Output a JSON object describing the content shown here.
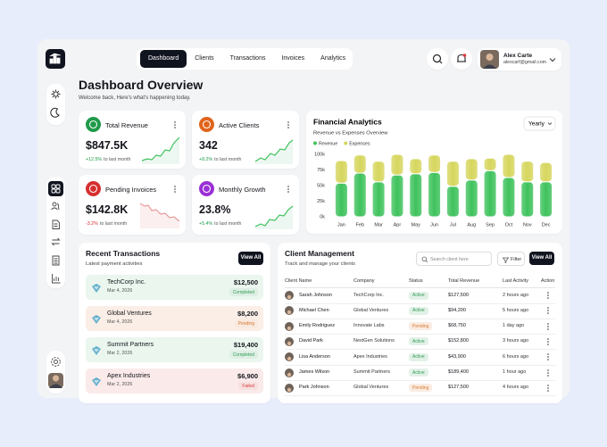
{
  "nav": {
    "tabs": [
      "Dashboard",
      "Clients",
      "Transactions",
      "Invoices",
      "Analytics"
    ]
  },
  "user": {
    "name": "Alex Carte",
    "email": "alexcarf@gmail.com"
  },
  "header": {
    "title": "Dashboard Overview",
    "subtitle": "Welcome back, Here's what's happening today."
  },
  "stats": [
    {
      "label": "Total Revenue",
      "value": "$847.5K",
      "change": "+12.5%",
      "note": "to last month",
      "color": "#1f9a4a",
      "change_color": "#1f9a4a"
    },
    {
      "label": "Active Clients",
      "value": "342",
      "change": "+8.2%",
      "note": "to last month",
      "color": "#e0641c",
      "change_color": "#1f9a4a"
    },
    {
      "label": "Pending Invoices",
      "value": "$142.8K",
      "change": "-3.2%",
      "note": "to last month",
      "color": "#d63030",
      "change_color": "#d63030"
    },
    {
      "label": "Monthly Growth",
      "value": "23.8%",
      "change": "+5.4%",
      "note": "to last month",
      "color": "#9b30d6",
      "change_color": "#1f9a4a"
    }
  ],
  "chart_data": {
    "type": "bar",
    "stacked": true,
    "title": "Financial Analytics",
    "subtitle": "Revenue vs Expenses Overview",
    "period": "Yearly",
    "categories": [
      "Jan",
      "Feb",
      "Mar",
      "Apr",
      "May",
      "Jun",
      "Jul",
      "Aug",
      "Sep",
      "Oct",
      "Nov",
      "Dec"
    ],
    "series": [
      {
        "name": "Revenue",
        "color": "#3ec25c",
        "values": [
          54000,
          70000,
          56000,
          67000,
          69000,
          71000,
          49000,
          59000,
          74000,
          63000,
          56000,
          56000
        ]
      },
      {
        "name": "Expenses",
        "color": "#d6d65e",
        "values": [
          36000,
          29000,
          33000,
          33000,
          24000,
          28000,
          40000,
          34000,
          20000,
          37000,
          33000,
          31000
        ]
      }
    ],
    "ylim": [
      0,
      100000
    ],
    "yticks": [
      {
        "value": 0,
        "label": "0k"
      },
      {
        "value": 25000,
        "label": "25k"
      },
      {
        "value": 50000,
        "label": "50k"
      },
      {
        "value": 75000,
        "label": "75k"
      },
      {
        "value": 100000,
        "label": "100k"
      }
    ]
  },
  "transactions": {
    "title": "Recent Transactions",
    "subtitle": "Latest payment activities",
    "button": "View All",
    "items": [
      {
        "company": "TechCorp Inc.",
        "date": "Mar 4, 2026",
        "amount": "$12,500",
        "status": "Completed",
        "status_color": "#2f9d55",
        "background": "#eaf6ee"
      },
      {
        "company": "Global Ventures",
        "date": "Mar 4, 2026",
        "amount": "$8,200",
        "status": "Pending",
        "status_color": "#d9782e",
        "background": "#fbeee6"
      },
      {
        "company": "Summit Partners",
        "date": "Mar 2, 2026",
        "amount": "$19,400",
        "status": "Completed",
        "status_color": "#2f9d55",
        "background": "#eaf6ee"
      },
      {
        "company": "Apex Industries",
        "date": "Mar 2, 2026",
        "amount": "$6,900",
        "status": "Failed",
        "status_color": "#d63c3c",
        "background": "#fbeaea"
      }
    ]
  },
  "clients": {
    "title": "Client Management",
    "subtitle": "Track and manage your clients",
    "search": "Search client here",
    "filter": "Filter",
    "button": "View All",
    "columns": [
      "Client Name",
      "Company",
      "Status",
      "Total Revenue",
      "Last Activity",
      "Action"
    ],
    "rows": [
      {
        "name": "Sarah Johnson",
        "company": "TechCorp Inc.",
        "status": "Active",
        "revenue": "$127,500",
        "last": "2 hours ago",
        "status_color": "#2f9d55"
      },
      {
        "name": "Michael Chen",
        "company": "Global Ventures",
        "status": "Active",
        "revenue": "$94,200",
        "last": "5 hours ago",
        "status_color": "#2f9d55"
      },
      {
        "name": "Emily Rodriguez",
        "company": "Innovate Labs",
        "status": "Pending",
        "revenue": "$68,750",
        "last": "1 day ago",
        "status_color": "#d9782e"
      },
      {
        "name": "David Park",
        "company": "NextGen Solutions",
        "status": "Active",
        "revenue": "$152,800",
        "last": "3 hours ago",
        "status_color": "#2f9d55"
      },
      {
        "name": "Lisa Anderson",
        "company": "Apex Industries",
        "status": "Active",
        "revenue": "$43,900",
        "last": "6 hours ago",
        "status_color": "#2f9d55"
      },
      {
        "name": "James Wilson",
        "company": "Summit Partners",
        "status": "Active",
        "revenue": "$189,400",
        "last": "1 hour ago",
        "status_color": "#2f9d55"
      },
      {
        "name": "Park Johnson",
        "company": "Global Ventures",
        "status": "Pending",
        "revenue": "$127,500",
        "last": "4 hours ago",
        "status_color": "#d9782e"
      }
    ]
  }
}
